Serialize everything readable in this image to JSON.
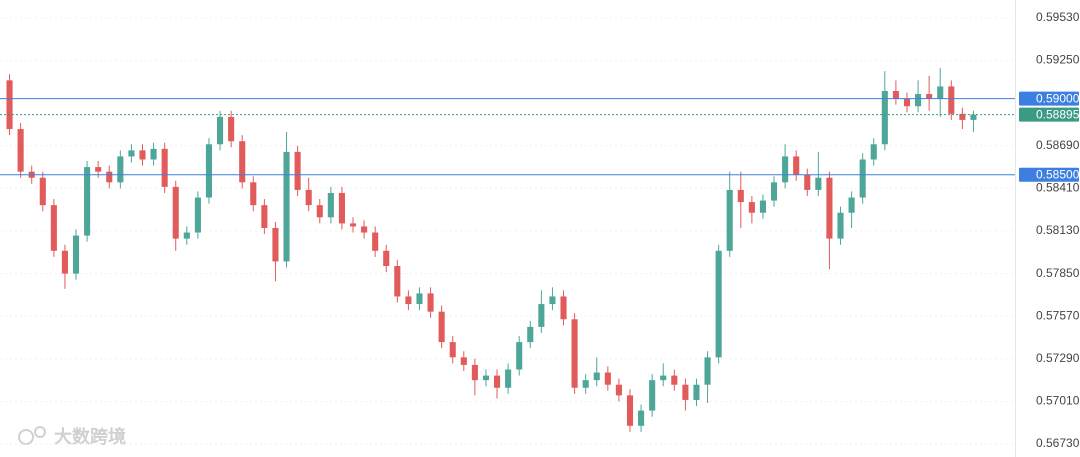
{
  "chart_data": {
    "type": "candlestick",
    "watermark": "大数跨境",
    "ylim": [
      0.56645,
      0.59648
    ],
    "yticks": [
      {
        "value": 0.5953,
        "label": "0.59530"
      },
      {
        "value": 0.5925,
        "label": "0.59250"
      },
      {
        "value": 0.5869,
        "label": "0.58690"
      },
      {
        "value": 0.5841,
        "label": "0.58410"
      },
      {
        "value": 0.5813,
        "label": "0.58130"
      },
      {
        "value": 0.5785,
        "label": "0.57850"
      },
      {
        "value": 0.5757,
        "label": "0.57570"
      },
      {
        "value": 0.5729,
        "label": "0.57290"
      },
      {
        "value": 0.5701,
        "label": "0.57010"
      },
      {
        "value": 0.5673,
        "label": "0.56730"
      }
    ],
    "grid": true,
    "up_color": "#4ea699",
    "down_color": "#e15b5b",
    "levels": [
      {
        "value": 0.59,
        "label": "0.59000",
        "color": "#3d7fe0"
      },
      {
        "value": 0.585,
        "label": "0.58500",
        "color": "#3d7fe0"
      }
    ],
    "last_price": {
      "value": 0.58895,
      "label": "0.58895",
      "color": "#3a9a84"
    },
    "open": [
      0.5912,
      0.588,
      0.5852,
      0.5848,
      0.583,
      0.58,
      0.5785,
      0.581,
      0.5855,
      0.5852,
      0.5845,
      0.5862,
      0.5866,
      0.586,
      0.5867,
      0.5842,
      0.5808,
      0.5812,
      0.5835,
      0.587,
      0.5888,
      0.5872,
      0.5845,
      0.583,
      0.5815,
      0.5793,
      0.5865,
      0.584,
      0.583,
      0.5822,
      0.5838,
      0.5818,
      0.5816,
      0.5812,
      0.58,
      0.579,
      0.577,
      0.5765,
      0.5772,
      0.576,
      0.574,
      0.573,
      0.5725,
      0.5715,
      0.5718,
      0.571,
      0.5722,
      0.574,
      0.575,
      0.5765,
      0.577,
      0.5755,
      0.571,
      0.5715,
      0.572,
      0.5712,
      0.5705,
      0.5685,
      0.5695,
      0.5715,
      0.5718,
      0.5712,
      0.5702,
      0.5712,
      0.573,
      0.58,
      0.584,
      0.5832,
      0.5825,
      0.5833,
      0.5845,
      0.5862,
      0.585,
      0.584,
      0.5848,
      0.5808,
      0.5825,
      0.5835,
      0.586,
      0.587,
      0.5905,
      0.59,
      0.5895,
      0.5903,
      0.59,
      0.5908,
      0.589,
      0.5886
    ],
    "high": [
      0.5916,
      0.5884,
      0.5856,
      0.5852,
      0.5834,
      0.5804,
      0.5814,
      0.5859,
      0.5859,
      0.5856,
      0.5866,
      0.587,
      0.587,
      0.5871,
      0.5871,
      0.5846,
      0.5816,
      0.5839,
      0.5874,
      0.5892,
      0.5892,
      0.5876,
      0.5849,
      0.5834,
      0.5819,
      0.5878,
      0.5869,
      0.5848,
      0.5834,
      0.5842,
      0.5842,
      0.5822,
      0.582,
      0.5816,
      0.5804,
      0.5794,
      0.5774,
      0.5776,
      0.5776,
      0.5764,
      0.5744,
      0.5734,
      0.5729,
      0.5722,
      0.5722,
      0.5726,
      0.5744,
      0.5754,
      0.5774,
      0.5776,
      0.5774,
      0.5759,
      0.5719,
      0.573,
      0.5724,
      0.5716,
      0.5709,
      0.5699,
      0.5719,
      0.5726,
      0.5722,
      0.5716,
      0.5716,
      0.5734,
      0.5804,
      0.5852,
      0.5852,
      0.5836,
      0.5837,
      0.5849,
      0.587,
      0.5866,
      0.5854,
      0.5865,
      0.5852,
      0.5829,
      0.5839,
      0.5864,
      0.5874,
      0.5918,
      0.5912,
      0.5904,
      0.5912,
      0.5915,
      0.592,
      0.5912,
      0.5894,
      0.5892
    ],
    "low": [
      0.5876,
      0.5848,
      0.5844,
      0.5826,
      0.5796,
      0.5775,
      0.5781,
      0.5806,
      0.5848,
      0.5841,
      0.5841,
      0.5858,
      0.5856,
      0.5856,
      0.5838,
      0.58,
      0.5804,
      0.5808,
      0.5831,
      0.5866,
      0.5868,
      0.5841,
      0.5826,
      0.5811,
      0.578,
      0.5789,
      0.5836,
      0.5826,
      0.5818,
      0.5818,
      0.5814,
      0.5812,
      0.5808,
      0.5796,
      0.5786,
      0.5766,
      0.5761,
      0.5761,
      0.5756,
      0.5736,
      0.5726,
      0.5721,
      0.5705,
      0.5711,
      0.5703,
      0.5706,
      0.5718,
      0.5736,
      0.5746,
      0.5761,
      0.5751,
      0.5706,
      0.5706,
      0.5711,
      0.5708,
      0.5701,
      0.5681,
      0.5681,
      0.5691,
      0.5711,
      0.5708,
      0.5695,
      0.5698,
      0.57,
      0.5726,
      0.5796,
      0.5815,
      0.5818,
      0.5821,
      0.5829,
      0.5841,
      0.5846,
      0.5836,
      0.5836,
      0.5788,
      0.5804,
      0.5815,
      0.5831,
      0.5856,
      0.5866,
      0.5896,
      0.5891,
      0.5891,
      0.5892,
      0.5888,
      0.5886,
      0.588,
      0.5878
    ],
    "close": [
      0.588,
      0.5852,
      0.5848,
      0.583,
      0.58,
      0.5785,
      0.581,
      0.5855,
      0.5852,
      0.5845,
      0.5862,
      0.5866,
      0.586,
      0.5867,
      0.5842,
      0.5808,
      0.5812,
      0.5835,
      0.587,
      0.5888,
      0.5872,
      0.5845,
      0.583,
      0.5815,
      0.5793,
      0.5865,
      0.584,
      0.583,
      0.5822,
      0.5838,
      0.5818,
      0.5816,
      0.5812,
      0.58,
      0.579,
      0.577,
      0.5765,
      0.5772,
      0.576,
      0.574,
      0.573,
      0.5725,
      0.5715,
      0.5718,
      0.571,
      0.5722,
      0.574,
      0.575,
      0.5765,
      0.577,
      0.5755,
      0.571,
      0.5715,
      0.572,
      0.5712,
      0.5705,
      0.5685,
      0.5695,
      0.5715,
      0.5718,
      0.5712,
      0.5702,
      0.5712,
      0.573,
      0.58,
      0.584,
      0.5832,
      0.5825,
      0.5833,
      0.5845,
      0.5862,
      0.585,
      0.584,
      0.5848,
      0.5808,
      0.5825,
      0.5835,
      0.586,
      0.587,
      0.5905,
      0.59,
      0.5895,
      0.5903,
      0.59,
      0.5908,
      0.589,
      0.5886,
      0.58895
    ]
  }
}
